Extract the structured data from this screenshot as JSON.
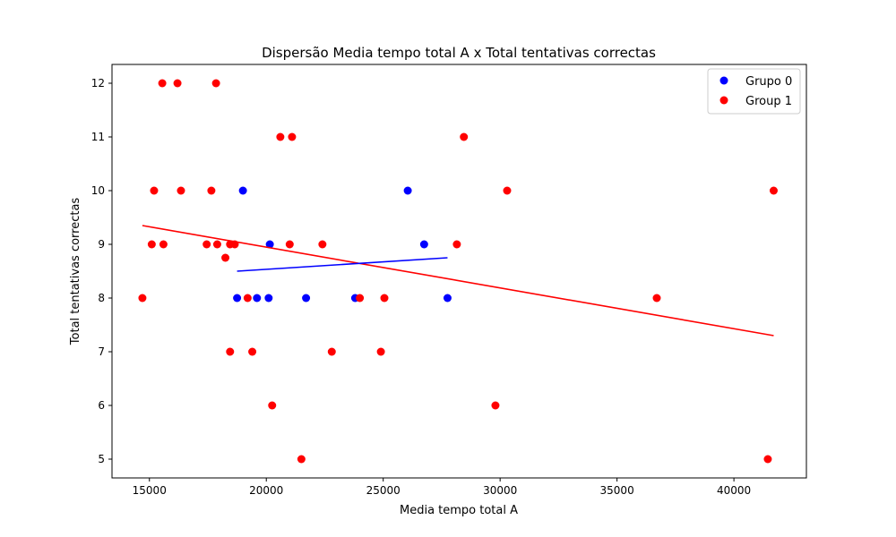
{
  "chart_data": {
    "type": "scatter",
    "title": "Dispersão Media tempo total A x Total tentativas correctas",
    "xlabel": "Media tempo total A",
    "ylabel": "Total tentativas correctas",
    "xlim": [
      13400,
      43100
    ],
    "ylim": [
      4.65,
      12.35
    ],
    "xticks": [
      15000,
      20000,
      25000,
      30000,
      35000,
      40000
    ],
    "yticks": [
      5,
      6,
      7,
      8,
      9,
      10,
      11,
      12
    ],
    "grid": false,
    "legend_position": "top-right",
    "series": [
      {
        "name": "Grupo 0",
        "color": "#0000ff",
        "points": [
          [
            19000,
            10
          ],
          [
            20150,
            9
          ],
          [
            18750,
            8
          ],
          [
            19600,
            8
          ],
          [
            20100,
            8
          ],
          [
            21700,
            8
          ],
          [
            23800,
            8
          ],
          [
            26050,
            10
          ],
          [
            26750,
            9
          ],
          [
            27750,
            8
          ]
        ],
        "fit_line": [
          [
            18750,
            8.5
          ],
          [
            27750,
            8.75
          ]
        ]
      },
      {
        "name": "Group 1",
        "color": "#ff0000",
        "points": [
          [
            15550,
            12
          ],
          [
            16200,
            12
          ],
          [
            17850,
            12
          ],
          [
            20600,
            11
          ],
          [
            21100,
            11
          ],
          [
            28450,
            11
          ],
          [
            15200,
            10
          ],
          [
            16350,
            10
          ],
          [
            17650,
            10
          ],
          [
            30300,
            10
          ],
          [
            41700,
            10
          ],
          [
            15100,
            9
          ],
          [
            15600,
            9
          ],
          [
            17450,
            9
          ],
          [
            17900,
            9
          ],
          [
            18450,
            9
          ],
          [
            18650,
            9
          ],
          [
            21000,
            9
          ],
          [
            22400,
            9
          ],
          [
            28150,
            9
          ],
          [
            18250,
            8.75
          ],
          [
            14700,
            8
          ],
          [
            19200,
            8
          ],
          [
            24000,
            8
          ],
          [
            25050,
            8
          ],
          [
            36700,
            8
          ],
          [
            18450,
            7
          ],
          [
            19400,
            7
          ],
          [
            22800,
            7
          ],
          [
            24900,
            7
          ],
          [
            20250,
            6
          ],
          [
            29800,
            6
          ],
          [
            21500,
            5
          ],
          [
            41450,
            5
          ]
        ],
        "fit_line": [
          [
            14700,
            9.35
          ],
          [
            41700,
            7.3
          ]
        ]
      }
    ]
  }
}
